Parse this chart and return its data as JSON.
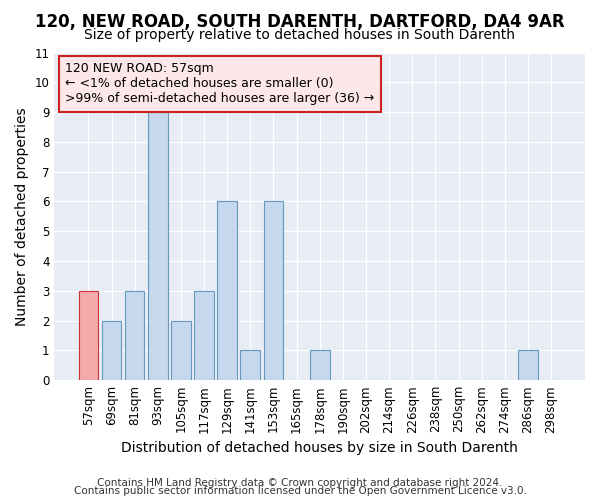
{
  "title": "120, NEW ROAD, SOUTH DARENTH, DARTFORD, DA4 9AR",
  "subtitle": "Size of property relative to detached houses in South Darenth",
  "xlabel": "Distribution of detached houses by size in South Darenth",
  "ylabel": "Number of detached properties",
  "footnote1": "Contains HM Land Registry data © Crown copyright and database right 2024.",
  "footnote2": "Contains public sector information licensed under the Open Government Licence v3.0.",
  "categories": [
    "57sqm",
    "69sqm",
    "81sqm",
    "93sqm",
    "105sqm",
    "117sqm",
    "129sqm",
    "141sqm",
    "153sqm",
    "165sqm",
    "178sqm",
    "190sqm",
    "202sqm",
    "214sqm",
    "226sqm",
    "238sqm",
    "250sqm",
    "262sqm",
    "274sqm",
    "286sqm",
    "298sqm"
  ],
  "values": [
    3,
    2,
    3,
    9,
    2,
    3,
    6,
    1,
    6,
    0,
    1,
    0,
    0,
    0,
    0,
    0,
    0,
    0,
    0,
    1,
    0
  ],
  "bar_color": "#c5d8ee",
  "bar_edge_color": "#6699bb",
  "highlight_index": 0,
  "highlight_color": "#f4aaaa",
  "highlight_edge_color": "#cc3333",
  "annotation_line1": "120 NEW ROAD: 57sqm",
  "annotation_line2": "← <1% of detached houses are smaller (0)",
  "annotation_line3": ">99% of semi-detached houses are larger (36) →",
  "annotation_box_facecolor": "#fce8e8",
  "annotation_box_edgecolor": "#cc2222",
  "ylim": [
    0,
    11
  ],
  "yticks": [
    0,
    1,
    2,
    3,
    4,
    5,
    6,
    7,
    8,
    9,
    10,
    11
  ],
  "fig_bg_color": "#ffffff",
  "plot_bg_color": "#e8edf5",
  "grid_color": "#ffffff",
  "title_fontsize": 12,
  "subtitle_fontsize": 10,
  "axis_label_fontsize": 10,
  "tick_fontsize": 8.5,
  "annotation_fontsize": 9,
  "footnote_fontsize": 7.5
}
